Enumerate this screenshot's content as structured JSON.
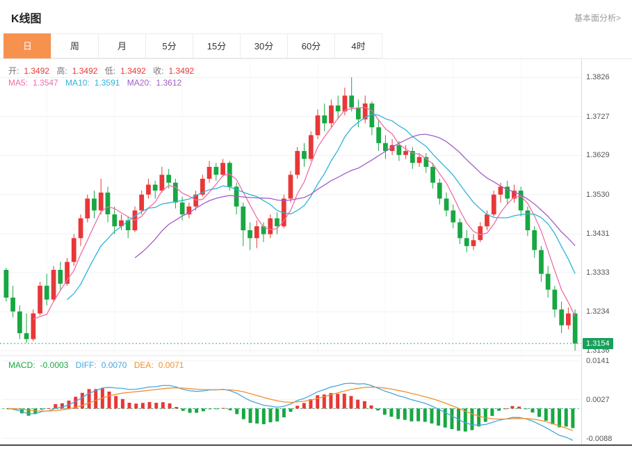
{
  "header": {
    "title": "K线图",
    "link_label": "基本面分析>"
  },
  "tabs": {
    "items": [
      {
        "label": "日",
        "active": true
      },
      {
        "label": "周",
        "active": false
      },
      {
        "label": "月",
        "active": false
      },
      {
        "label": "5分",
        "active": false
      },
      {
        "label": "15分",
        "active": false
      },
      {
        "label": "30分",
        "active": false
      },
      {
        "label": "60分",
        "active": false
      },
      {
        "label": "4时",
        "active": false
      }
    ]
  },
  "ohlc_legend": {
    "open_label": "开:",
    "open": "1.3492",
    "high_label": "高:",
    "high": "1.3492",
    "low_label": "低:",
    "low": "1.3492",
    "close_label": "收:",
    "close": "1.3492"
  },
  "ma_legend": {
    "ma5_label": "MA5:",
    "ma5": "1.3547",
    "ma10_label": "MA10:",
    "ma10": "1.3591",
    "ma20_label": "MA20:",
    "ma20": "1.3612"
  },
  "macd_legend": {
    "macd_label": "MACD:",
    "macd": "-0.0003",
    "diff_label": "DIFF:",
    "diff": "0.0070",
    "dea_label": "DEA:",
    "dea": "0.0071"
  },
  "colors": {
    "up": "#e83737",
    "down": "#18a742",
    "ma5": "#f06ca8",
    "ma10": "#2bb3d8",
    "ma20": "#9e5fc4",
    "diff_line": "#46a5dc",
    "dea_line": "#f08f2e",
    "dash_line": "#2fa878",
    "tab_active": "#f7924e",
    "last_price_bg": "#18a05c",
    "grid": "#f0f0f0"
  },
  "chart_data": [
    {
      "type": "candlestick",
      "title": "K线图 日",
      "y_axis_labels": [
        "1.3826",
        "1.3727",
        "1.3629",
        "1.3530",
        "1.3431",
        "1.3333",
        "1.3234",
        "1.3136"
      ],
      "ylim": [
        1.3124,
        1.3872
      ],
      "last_price": "1.3154",
      "last_price_value": 1.3154,
      "overlays": [
        "MA5",
        "MA10",
        "MA20"
      ],
      "candles": [
        [
          1.334,
          1.3345,
          1.326,
          1.327
        ],
        [
          1.327,
          1.33,
          1.322,
          1.3235
        ],
        [
          1.3235,
          1.325,
          1.3165,
          1.318
        ],
        [
          1.318,
          1.323,
          1.3155,
          1.3165
        ],
        [
          1.3165,
          1.324,
          1.316,
          1.323
        ],
        [
          1.323,
          1.331,
          1.3225,
          1.33
        ],
        [
          1.33,
          1.333,
          1.325,
          1.3265
        ],
        [
          1.3265,
          1.335,
          1.326,
          1.334
        ],
        [
          1.334,
          1.336,
          1.329,
          1.3305
        ],
        [
          1.3305,
          1.337,
          1.33,
          1.336
        ],
        [
          1.336,
          1.343,
          1.335,
          1.342
        ],
        [
          1.342,
          1.348,
          1.34,
          1.347
        ],
        [
          1.347,
          1.353,
          1.346,
          1.352
        ],
        [
          1.352,
          1.354,
          1.347,
          1.349
        ],
        [
          1.349,
          1.357,
          1.348,
          1.3535
        ],
        [
          1.3535,
          1.355,
          1.346,
          1.348
        ],
        [
          1.348,
          1.35,
          1.343,
          1.345
        ],
        [
          1.345,
          1.348,
          1.344,
          1.3465
        ],
        [
          1.3465,
          1.3475,
          1.342,
          1.344
        ],
        [
          1.344,
          1.35,
          1.3435,
          1.349
        ],
        [
          1.349,
          1.354,
          1.348,
          1.353
        ],
        [
          1.353,
          1.357,
          1.352,
          1.3555
        ],
        [
          1.3555,
          1.3565,
          1.352,
          1.354
        ],
        [
          1.354,
          1.36,
          1.3535,
          1.358
        ],
        [
          1.358,
          1.3595,
          1.3545,
          1.356
        ],
        [
          1.356,
          1.357,
          1.3495,
          1.351
        ],
        [
          1.351,
          1.3525,
          1.3465,
          1.348
        ],
        [
          1.348,
          1.351,
          1.347,
          1.35
        ],
        [
          1.35,
          1.354,
          1.349,
          1.353
        ],
        [
          1.353,
          1.358,
          1.3525,
          1.357
        ],
        [
          1.357,
          1.3615,
          1.356,
          1.36
        ],
        [
          1.36,
          1.361,
          1.3565,
          1.358
        ],
        [
          1.358,
          1.362,
          1.3575,
          1.361
        ],
        [
          1.361,
          1.3615,
          1.354,
          1.355
        ],
        [
          1.355,
          1.356,
          1.348,
          1.35
        ],
        [
          1.35,
          1.351,
          1.34,
          1.344
        ],
        [
          1.344,
          1.346,
          1.339,
          1.342
        ],
        [
          1.342,
          1.3465,
          1.3395,
          1.345
        ],
        [
          1.345,
          1.346,
          1.341,
          1.343
        ],
        [
          1.343,
          1.348,
          1.342,
          1.347
        ],
        [
          1.347,
          1.3485,
          1.343,
          1.345
        ],
        [
          1.345,
          1.353,
          1.3445,
          1.352
        ],
        [
          1.352,
          1.359,
          1.351,
          1.358
        ],
        [
          1.358,
          1.365,
          1.357,
          1.364
        ],
        [
          1.364,
          1.366,
          1.36,
          1.362
        ],
        [
          1.362,
          1.369,
          1.3615,
          1.368
        ],
        [
          1.368,
          1.3745,
          1.367,
          1.373
        ],
        [
          1.373,
          1.376,
          1.369,
          1.371
        ],
        [
          1.371,
          1.377,
          1.37,
          1.3755
        ],
        [
          1.3755,
          1.378,
          1.372,
          1.374
        ],
        [
          1.374,
          1.38,
          1.373,
          1.378
        ],
        [
          1.378,
          1.3826,
          1.374,
          1.375
        ],
        [
          1.375,
          1.377,
          1.37,
          1.372
        ],
        [
          1.372,
          1.378,
          1.371,
          1.376
        ],
        [
          1.376,
          1.3765,
          1.368,
          1.37
        ],
        [
          1.37,
          1.372,
          1.364,
          1.366
        ],
        [
          1.366,
          1.368,
          1.362,
          1.364
        ],
        [
          1.364,
          1.367,
          1.363,
          1.3655
        ],
        [
          1.3655,
          1.3665,
          1.3615,
          1.363
        ],
        [
          1.363,
          1.3655,
          1.362,
          1.364
        ],
        [
          1.364,
          1.365,
          1.3595,
          1.361
        ],
        [
          1.361,
          1.3635,
          1.36,
          1.3625
        ],
        [
          1.3625,
          1.3635,
          1.3585,
          1.36
        ],
        [
          1.36,
          1.361,
          1.3545,
          1.356
        ],
        [
          1.356,
          1.357,
          1.3505,
          1.352
        ],
        [
          1.352,
          1.3535,
          1.3475,
          1.349
        ],
        [
          1.349,
          1.3505,
          1.3445,
          1.346
        ],
        [
          1.346,
          1.347,
          1.3405,
          1.342
        ],
        [
          1.342,
          1.344,
          1.3385,
          1.34
        ],
        [
          1.34,
          1.343,
          1.339,
          1.3415
        ],
        [
          1.3415,
          1.346,
          1.341,
          1.345
        ],
        [
          1.345,
          1.349,
          1.344,
          1.348
        ],
        [
          1.348,
          1.354,
          1.3475,
          1.353
        ],
        [
          1.353,
          1.356,
          1.351,
          1.355
        ],
        [
          1.355,
          1.3565,
          1.3505,
          1.352
        ],
        [
          1.352,
          1.3555,
          1.351,
          1.354
        ],
        [
          1.354,
          1.355,
          1.3475,
          1.349
        ],
        [
          1.349,
          1.35,
          1.3425,
          1.344
        ],
        [
          1.344,
          1.345,
          1.337,
          1.339
        ],
        [
          1.339,
          1.34,
          1.331,
          1.333
        ],
        [
          1.333,
          1.335,
          1.327,
          1.329
        ],
        [
          1.329,
          1.33,
          1.322,
          1.324
        ],
        [
          1.324,
          1.326,
          1.318,
          1.32
        ],
        [
          1.32,
          1.3245,
          1.319,
          1.323
        ],
        [
          1.323,
          1.324,
          1.3136,
          1.3154
        ]
      ]
    },
    {
      "type": "bar",
      "title": "MACD",
      "y_axis_labels": [
        "0.0141",
        "0.0027",
        "-0.0088"
      ],
      "ylim": [
        -0.0104,
        0.0155
      ],
      "series": [
        {
          "name": "MACD",
          "last": -0.0003
        },
        {
          "name": "DIFF",
          "last": 0.007
        },
        {
          "name": "DEA",
          "last": 0.0071
        }
      ],
      "derived": "computed from candle closes: DIFF = EMA12 - EMA26, DEA = EMA9(DIFF), histogram = 2 * (DIFF - DEA)"
    }
  ]
}
